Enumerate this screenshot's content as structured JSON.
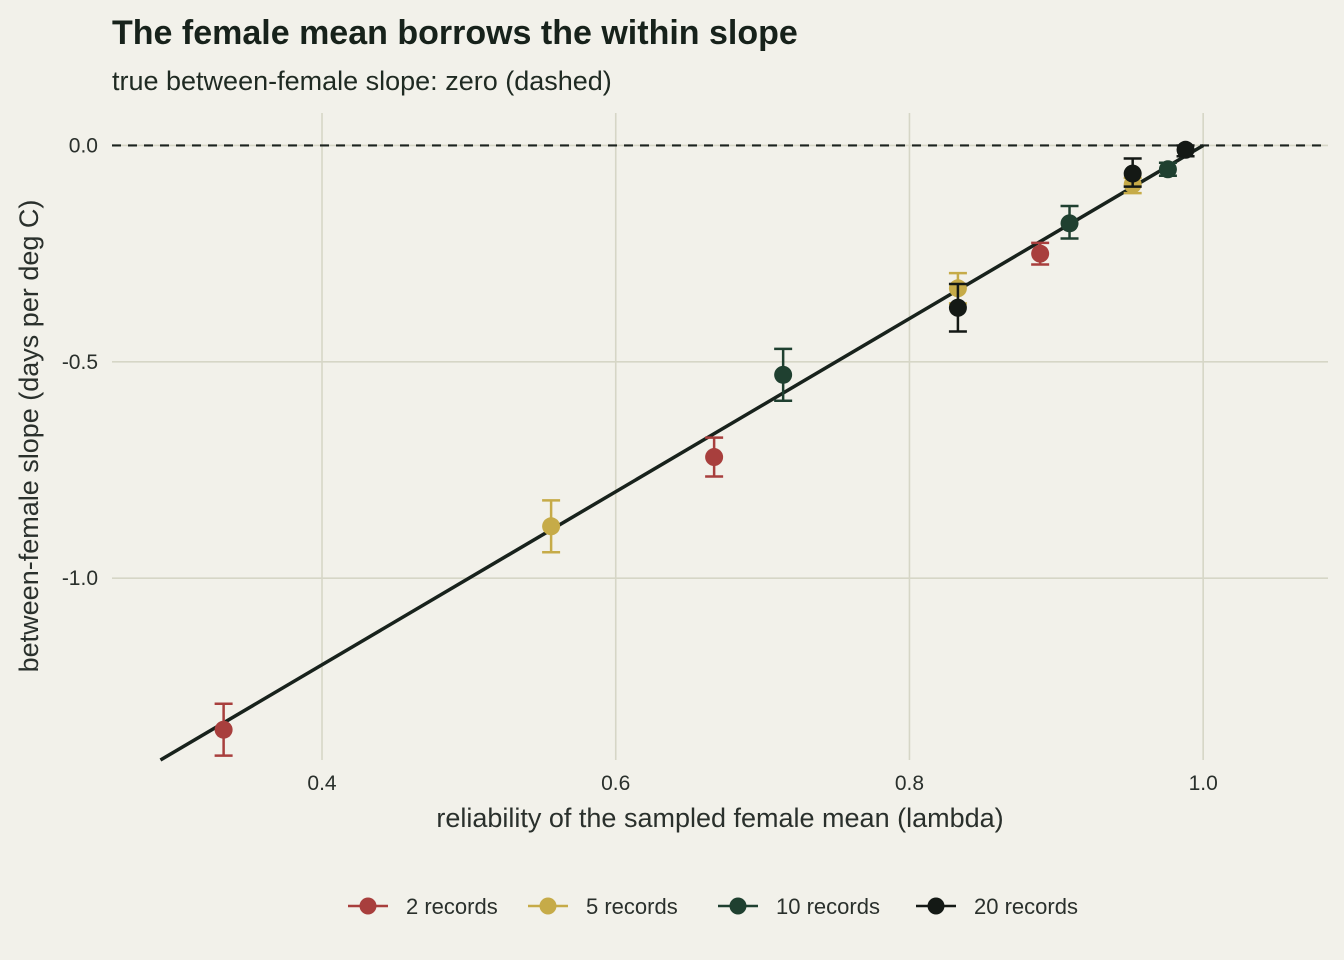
{
  "chart_data": {
    "type": "scatter",
    "title": "The female mean borrows the within slope",
    "subtitle": "true between-female slope: zero (dashed)",
    "xlabel": "reliability of the sampled female mean (lambda)",
    "ylabel": "between-female slope (days per deg C)",
    "xlim": [
      0.257,
      1.085
    ],
    "ylim": [
      -1.42,
      0.075
    ],
    "x_ticks": [
      0.4,
      0.6,
      0.8,
      1.0
    ],
    "x_tick_labels": [
      "0.4",
      "0.6",
      "0.8",
      "1.0"
    ],
    "y_ticks": [
      0.0,
      -0.5,
      -1.0
    ],
    "y_tick_labels": [
      "0.0",
      "-0.5",
      "-1.0"
    ],
    "grid": true,
    "legend_position": "bottom",
    "reference_line": {
      "type": "hline",
      "y": 0.0,
      "style": "dashed",
      "color": "#1c231f"
    },
    "fit_line": {
      "x": [
        0.29,
        1.0
      ],
      "y": [
        -1.42,
        0.0
      ],
      "color": "#18221c"
    },
    "series": [
      {
        "name": "2 records",
        "color": "#a83f3d",
        "points": [
          {
            "x": 0.333,
            "y": -1.35,
            "ymin": -1.41,
            "ymax": -1.29
          },
          {
            "x": 0.667,
            "y": -0.72,
            "ymin": -0.765,
            "ymax": -0.675
          },
          {
            "x": 0.889,
            "y": -0.25,
            "ymin": -0.275,
            "ymax": -0.225
          }
        ]
      },
      {
        "name": "5 records",
        "color": "#c6ab48",
        "points": [
          {
            "x": 0.556,
            "y": -0.88,
            "ymin": -0.94,
            "ymax": -0.82
          },
          {
            "x": 0.833,
            "y": -0.33,
            "ymin": -0.365,
            "ymax": -0.295
          },
          {
            "x": 0.952,
            "y": -0.09,
            "ymin": -0.11,
            "ymax": -0.075
          }
        ]
      },
      {
        "name": "10 records",
        "color": "#1f4030",
        "points": [
          {
            "x": 0.714,
            "y": -0.53,
            "ymin": -0.59,
            "ymax": -0.47
          },
          {
            "x": 0.909,
            "y": -0.18,
            "ymin": -0.215,
            "ymax": -0.14
          },
          {
            "x": 0.976,
            "y": -0.055,
            "ymin": -0.07,
            "ymax": -0.04
          }
        ]
      },
      {
        "name": "20 records",
        "color": "#141915",
        "points": [
          {
            "x": 0.833,
            "y": -0.375,
            "ymin": -0.43,
            "ymax": -0.32
          },
          {
            "x": 0.952,
            "y": -0.065,
            "ymin": -0.095,
            "ymax": -0.03
          },
          {
            "x": 0.988,
            "y": -0.01,
            "ymin": -0.025,
            "ymax": 0.0
          }
        ]
      }
    ]
  }
}
